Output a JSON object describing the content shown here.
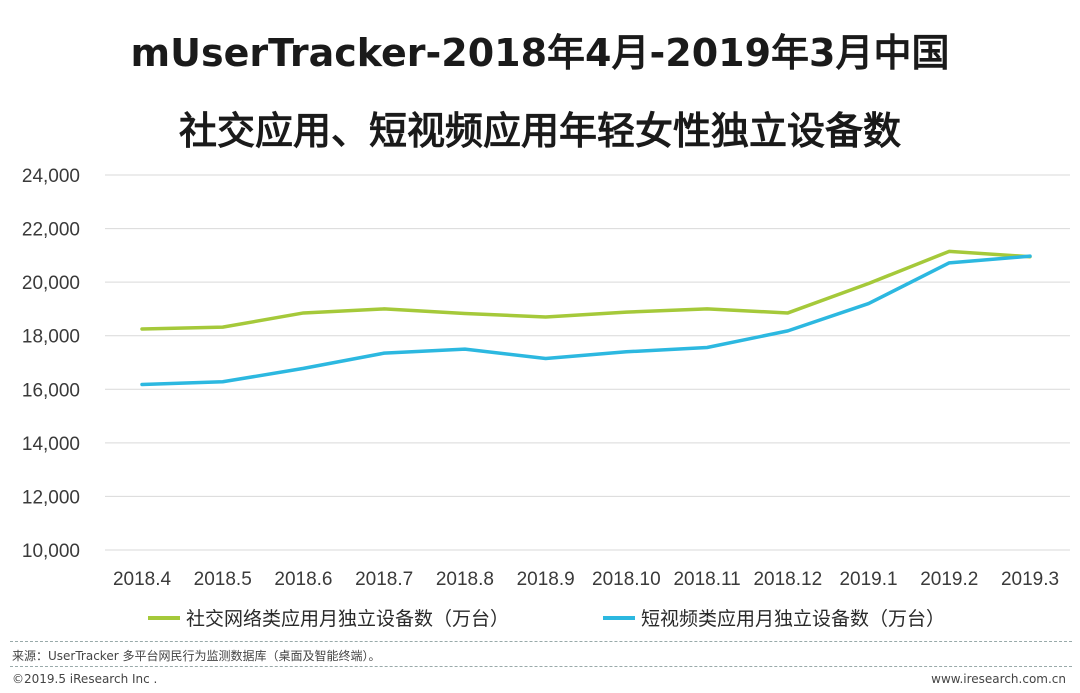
{
  "title_line1": "mUserTracker-2018年4月-2019年3月中国",
  "title_line2": "社交应用、短视频应用年轻女性独立设备数",
  "footer": {
    "source": "来源：UserTracker 多平台网民行为监测数据库（桌面及智能终端）。",
    "copyright": "©2019.5 iResearch Inc .",
    "website": "www.iresearch.com.cn"
  },
  "colors": {
    "social": "#a5c93a",
    "short_video": "#2cb8e0",
    "gridline": "#d9d9d9"
  },
  "chart_data": {
    "type": "line",
    "title": "mUserTracker-2018年4月-2019年3月中国 社交应用、短视频应用年轻女性独立设备数",
    "xlabel": "",
    "ylabel": "",
    "categories": [
      "2018.4",
      "2018.5",
      "2018.6",
      "2018.7",
      "2018.8",
      "2018.9",
      "2018.10",
      "2018.11",
      "2018.12",
      "2019.1",
      "2019.2",
      "2019.3"
    ],
    "ylim": [
      10000,
      24000
    ],
    "yticks": [
      10000,
      12000,
      14000,
      16000,
      18000,
      20000,
      22000,
      24000
    ],
    "ytick_labels": [
      "10,000",
      "12,000",
      "14,000",
      "16,000",
      "18,000",
      "20,000",
      "22,000",
      "24,000"
    ],
    "legend_position": "bottom",
    "series": [
      {
        "name": "社交网络类应用月独立设备数（万台）",
        "color": "#a5c93a",
        "values": [
          18250,
          18320,
          18850,
          19000,
          18830,
          18700,
          18880,
          19000,
          18850,
          19950,
          21150,
          20950
        ]
      },
      {
        "name": "短视频类应用月独立设备数（万台）",
        "color": "#2cb8e0",
        "values": [
          16180,
          16280,
          16780,
          17350,
          17500,
          17150,
          17400,
          17560,
          18180,
          19200,
          20720,
          20970
        ]
      }
    ]
  }
}
